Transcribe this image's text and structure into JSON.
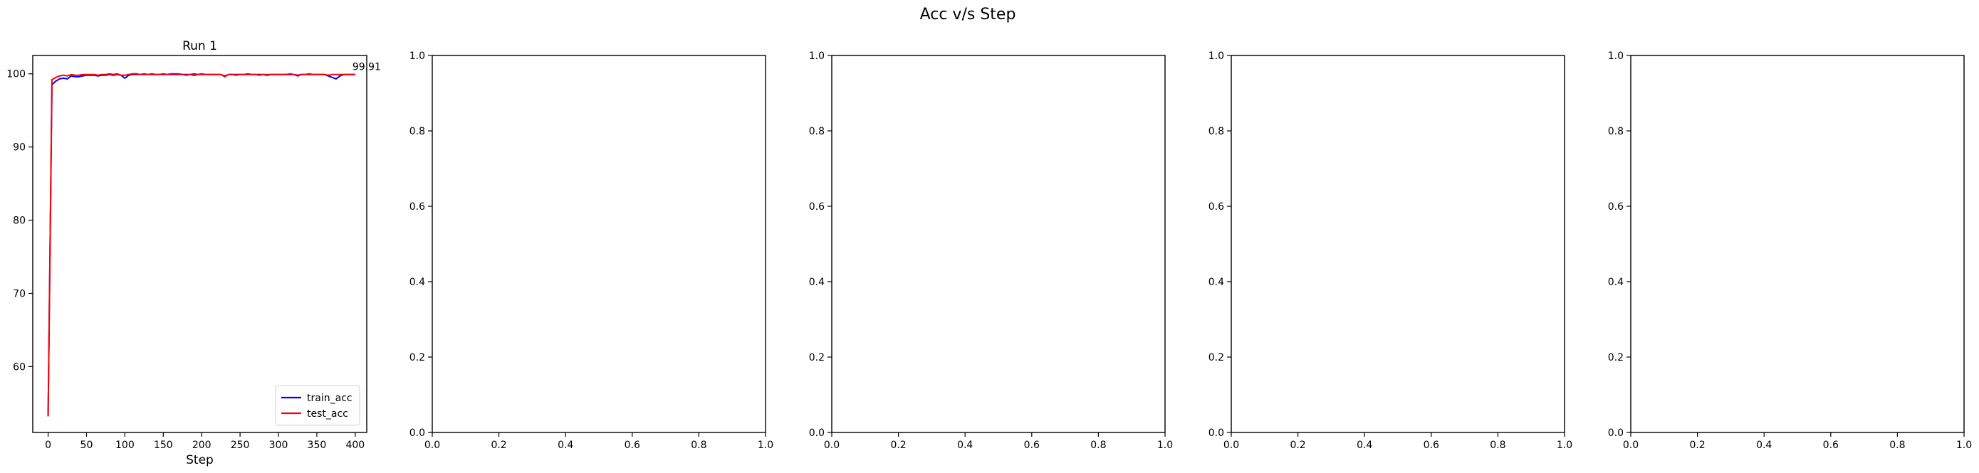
{
  "figure": {
    "title": "Acc v/s Step"
  },
  "chart_data": [
    {
      "type": "line",
      "title": "Run 1",
      "xlabel": "Step",
      "ylabel": "",
      "xlim": [
        -20,
        415
      ],
      "ylim": [
        51,
        102.5
      ],
      "xticks": [
        0,
        50,
        100,
        150,
        200,
        250,
        300,
        350,
        400
      ],
      "yticks": [
        60,
        70,
        80,
        90,
        100
      ],
      "legend_position": "lower right",
      "annotation": {
        "text": "99.91",
        "x": 400,
        "y": 99.91
      },
      "series": [
        {
          "name": "train_acc",
          "color": "#0000ff",
          "x": [
            0,
            5,
            10,
            15,
            20,
            25,
            30,
            35,
            40,
            45,
            50,
            55,
            60,
            65,
            70,
            75,
            80,
            85,
            90,
            95,
            100,
            105,
            110,
            115,
            120,
            125,
            130,
            135,
            140,
            145,
            150,
            155,
            160,
            165,
            170,
            175,
            180,
            185,
            190,
            195,
            200,
            205,
            210,
            215,
            220,
            225,
            230,
            235,
            240,
            245,
            250,
            255,
            260,
            265,
            270,
            275,
            280,
            285,
            290,
            295,
            300,
            305,
            310,
            315,
            320,
            325,
            330,
            335,
            340,
            345,
            350,
            355,
            360,
            365,
            370,
            375,
            380,
            385,
            390,
            395,
            400
          ],
          "y": [
            53.2,
            98.5,
            99.0,
            99.3,
            99.4,
            99.3,
            99.7,
            99.6,
            99.6,
            99.7,
            99.8,
            99.8,
            99.8,
            99.7,
            99.8,
            99.8,
            99.9,
            99.8,
            99.9,
            99.8,
            99.4,
            99.8,
            99.9,
            99.9,
            99.9,
            99.9,
            99.9,
            99.9,
            99.9,
            99.9,
            99.9,
            99.9,
            99.9,
            99.9,
            99.9,
            99.9,
            99.9,
            99.9,
            99.8,
            99.9,
            99.9,
            99.9,
            99.9,
            99.9,
            99.9,
            99.9,
            99.7,
            99.9,
            99.9,
            99.9,
            99.9,
            99.9,
            99.9,
            99.9,
            99.9,
            99.9,
            99.9,
            99.8,
            99.9,
            99.9,
            99.9,
            99.9,
            99.9,
            99.9,
            99.9,
            99.8,
            99.9,
            99.9,
            99.9,
            99.9,
            99.9,
            99.9,
            99.9,
            99.7,
            99.5,
            99.3,
            99.7,
            99.9,
            99.9,
            99.9,
            99.9
          ]
        },
        {
          "name": "test_acc",
          "color": "#ff0000",
          "x": [
            0,
            5,
            10,
            15,
            20,
            25,
            30,
            35,
            40,
            45,
            50,
            55,
            60,
            65,
            70,
            75,
            80,
            85,
            90,
            95,
            100,
            105,
            110,
            115,
            120,
            125,
            130,
            135,
            140,
            145,
            150,
            155,
            160,
            165,
            170,
            175,
            180,
            185,
            190,
            195,
            200,
            205,
            210,
            215,
            220,
            225,
            230,
            235,
            240,
            245,
            250,
            255,
            260,
            265,
            270,
            275,
            280,
            285,
            290,
            295,
            300,
            305,
            310,
            315,
            320,
            325,
            330,
            335,
            340,
            345,
            350,
            355,
            360,
            365,
            370,
            375,
            380,
            385,
            390,
            395,
            400
          ],
          "y": [
            53.3,
            99.2,
            99.5,
            99.7,
            99.8,
            99.7,
            99.9,
            99.8,
            99.8,
            99.9,
            99.9,
            99.9,
            99.9,
            99.8,
            99.9,
            99.9,
            100.0,
            99.9,
            100.0,
            99.8,
            99.8,
            99.9,
            100.0,
            100.0,
            99.9,
            100.0,
            99.9,
            100.0,
            99.9,
            99.9,
            100.0,
            99.9,
            100.0,
            100.0,
            100.0,
            99.9,
            99.8,
            99.9,
            100.0,
            99.9,
            100.0,
            99.9,
            99.9,
            99.9,
            99.9,
            99.9,
            99.6,
            99.9,
            99.9,
            99.8,
            99.9,
            99.9,
            100.0,
            99.9,
            99.9,
            99.8,
            99.9,
            99.9,
            99.9,
            99.9,
            99.9,
            99.9,
            99.9,
            100.0,
            99.9,
            99.7,
            99.9,
            99.9,
            100.0,
            99.9,
            99.9,
            99.9,
            99.9,
            99.8,
            99.9,
            99.9,
            99.9,
            99.9,
            99.9,
            99.9,
            99.91
          ]
        }
      ]
    },
    {
      "type": "line",
      "xlim": [
        0,
        1
      ],
      "ylim": [
        0,
        1
      ],
      "xticks": [
        0.0,
        0.2,
        0.4,
        0.6,
        0.8,
        1.0
      ],
      "yticks": [
        0.0,
        0.2,
        0.4,
        0.6,
        0.8,
        1.0
      ],
      "series": []
    },
    {
      "type": "line",
      "xlim": [
        0,
        1
      ],
      "ylim": [
        0,
        1
      ],
      "xticks": [
        0.0,
        0.2,
        0.4,
        0.6,
        0.8,
        1.0
      ],
      "yticks": [
        0.0,
        0.2,
        0.4,
        0.6,
        0.8,
        1.0
      ],
      "series": []
    },
    {
      "type": "line",
      "xlim": [
        0,
        1
      ],
      "ylim": [
        0,
        1
      ],
      "xticks": [
        0.0,
        0.2,
        0.4,
        0.6,
        0.8,
        1.0
      ],
      "yticks": [
        0.0,
        0.2,
        0.4,
        0.6,
        0.8,
        1.0
      ],
      "series": []
    },
    {
      "type": "line",
      "xlim": [
        0,
        1
      ],
      "ylim": [
        0,
        1
      ],
      "xticks": [
        0.0,
        0.2,
        0.4,
        0.6,
        0.8,
        1.0
      ],
      "yticks": [
        0.0,
        0.2,
        0.4,
        0.6,
        0.8,
        1.0
      ],
      "series": []
    }
  ]
}
